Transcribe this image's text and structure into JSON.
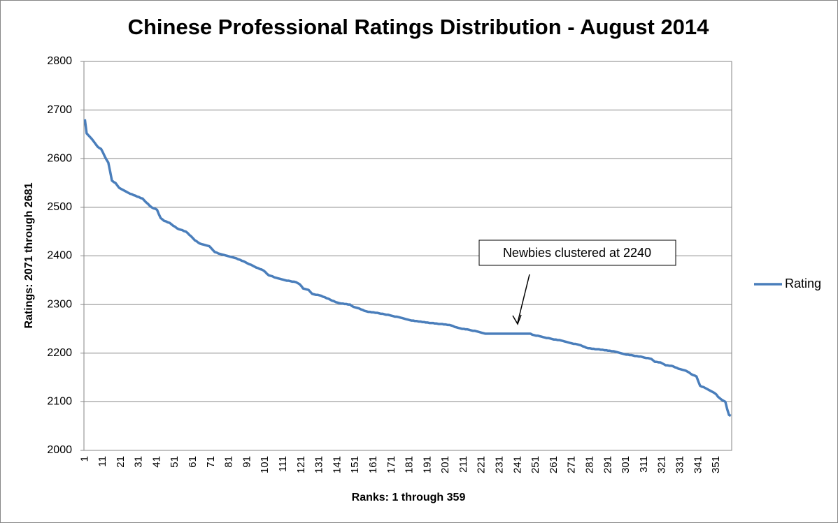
{
  "chart_data": {
    "type": "line",
    "title": "Chinese Professional Ratings Distribution - August 2014",
    "x_label": "Ranks: 1 through 359",
    "y_label": "Ratings: 2071 through 2681",
    "annotation": "Newbies clustered at 2240",
    "grid": true,
    "legend": "right",
    "ylim": [
      2000,
      2800
    ],
    "yticks": [
      2000,
      2100,
      2200,
      2300,
      2400,
      2500,
      2600,
      2700,
      2800
    ],
    "categories": [
      "1",
      null,
      null,
      null,
      null,
      null,
      null,
      null,
      null,
      null,
      "11",
      null,
      null,
      null,
      null,
      null,
      null,
      null,
      null,
      null,
      "21",
      null,
      null,
      null,
      null,
      null,
      null,
      null,
      null,
      null,
      "31",
      null,
      null,
      null,
      null,
      null,
      null,
      null,
      null,
      null,
      "41",
      null,
      null,
      null,
      null,
      null,
      null,
      null,
      null,
      null,
      "51",
      null,
      null,
      null,
      null,
      null,
      null,
      null,
      null,
      null,
      "61",
      null,
      null,
      null,
      null,
      null,
      null,
      null,
      null,
      null,
      "71",
      null,
      null,
      null,
      null,
      null,
      null,
      null,
      null,
      null,
      "81",
      null,
      null,
      null,
      null,
      null,
      null,
      null,
      null,
      null,
      "91",
      null,
      null,
      null,
      null,
      null,
      null,
      null,
      null,
      null,
      "101",
      null,
      null,
      null,
      null,
      null,
      null,
      null,
      null,
      null,
      "111",
      null,
      null,
      null,
      null,
      null,
      null,
      null,
      null,
      null,
      "121",
      null,
      null,
      null,
      null,
      null,
      null,
      null,
      null,
      null,
      "131",
      null,
      null,
      null,
      null,
      null,
      null,
      null,
      null,
      null,
      "141",
      null,
      null,
      null,
      null,
      null,
      null,
      null,
      null,
      null,
      "151",
      null,
      null,
      null,
      null,
      null,
      null,
      null,
      null,
      null,
      "161",
      null,
      null,
      null,
      null,
      null,
      null,
      null,
      null,
      null,
      "171",
      null,
      null,
      null,
      null,
      null,
      null,
      null,
      null,
      null,
      "181",
      null,
      null,
      null,
      null,
      null,
      null,
      null,
      null,
      null,
      "191",
      null,
      null,
      null,
      null,
      null,
      null,
      null,
      null,
      null,
      "201",
      null,
      null,
      null,
      null,
      null,
      null,
      null,
      null,
      null,
      "211",
      null,
      null,
      null,
      null,
      null,
      null,
      null,
      null,
      null,
      "221",
      null,
      null,
      null,
      null,
      null,
      null,
      null,
      null,
      null,
      "231",
      null,
      null,
      null,
      null,
      null,
      null,
      null,
      null,
      null,
      "241",
      null,
      null,
      null,
      null,
      null,
      null,
      null,
      null,
      null,
      "251",
      null,
      null,
      null,
      null,
      null,
      null,
      null,
      null,
      null,
      "261",
      null,
      null,
      null,
      null,
      null,
      null,
      null,
      null,
      null,
      "271",
      null,
      null,
      null,
      null,
      null,
      null,
      null,
      null,
      null,
      "281",
      null,
      null,
      null,
      null,
      null,
      null,
      null,
      null,
      null,
      "291",
      null,
      null,
      null,
      null,
      null,
      null,
      null,
      null,
      null,
      "301",
      null,
      null,
      null,
      null,
      null,
      null,
      null,
      null,
      null,
      "311",
      null,
      null,
      null,
      null,
      null,
      null,
      null,
      null,
      null,
      "321",
      null,
      null,
      null,
      null,
      null,
      null,
      null,
      null,
      null,
      "331",
      null,
      null,
      null,
      null,
      null,
      null,
      null,
      null,
      null,
      "341",
      null,
      null,
      null,
      null,
      null,
      null,
      null,
      null,
      null,
      "351",
      null,
      null,
      null,
      null,
      null,
      null,
      null,
      null
    ],
    "series": [
      {
        "name": "Rating",
        "color": "#4a7ebb",
        "values": [
          2681,
          2652,
          2648,
          2644,
          2640,
          2635,
          2630,
          2625,
          2622,
          2620,
          2613,
          2605,
          2598,
          2592,
          2574,
          2555,
          2552,
          2550,
          2545,
          2540,
          2538,
          2536,
          2534,
          2532,
          2530,
          2528,
          2527,
          2525,
          2524,
          2522,
          2521,
          2519,
          2518,
          2514,
          2510,
          2507,
          2503,
          2500,
          2498,
          2497,
          2495,
          2486,
          2478,
          2475,
          2472,
          2471,
          2469,
          2468,
          2465,
          2462,
          2460,
          2457,
          2455,
          2454,
          2453,
          2451,
          2450,
          2447,
          2443,
          2440,
          2436,
          2432,
          2430,
          2427,
          2425,
          2424,
          2423,
          2422,
          2421,
          2420,
          2416,
          2412,
          2408,
          2407,
          2405,
          2404,
          2403,
          2402,
          2401,
          2400,
          2399,
          2398,
          2397,
          2396,
          2395,
          2393,
          2392,
          2390,
          2389,
          2387,
          2385,
          2383,
          2382,
          2380,
          2378,
          2376,
          2375,
          2373,
          2372,
          2370,
          2367,
          2363,
          2360,
          2359,
          2358,
          2356,
          2355,
          2354,
          2353,
          2352,
          2351,
          2350,
          2349,
          2349,
          2348,
          2347,
          2347,
          2346,
          2344,
          2342,
          2338,
          2333,
          2332,
          2331,
          2330,
          2326,
          2322,
          2321,
          2320,
          2320,
          2319,
          2318,
          2316,
          2315,
          2313,
          2312,
          2310,
          2308,
          2307,
          2305,
          2304,
          2303,
          2302,
          2302,
          2301,
          2301,
          2300,
          2300,
          2297,
          2295,
          2294,
          2293,
          2292,
          2290,
          2289,
          2287,
          2286,
          2285,
          2285,
          2284,
          2284,
          2283,
          2283,
          2282,
          2281,
          2281,
          2280,
          2279,
          2279,
          2278,
          2277,
          2276,
          2275,
          2275,
          2274,
          2273,
          2272,
          2271,
          2270,
          2269,
          2268,
          2267,
          2267,
          2266,
          2266,
          2265,
          2265,
          2264,
          2264,
          2263,
          2263,
          2262,
          2262,
          2262,
          2261,
          2261,
          2260,
          2260,
          2260,
          2259,
          2259,
          2258,
          2258,
          2257,
          2256,
          2254,
          2253,
          2252,
          2251,
          2250,
          2250,
          2249,
          2249,
          2248,
          2247,
          2246,
          2246,
          2245,
          2244,
          2243,
          2242,
          2241,
          2240,
          2240,
          2240,
          2240,
          2240,
          2240,
          2240,
          2240,
          2240,
          2240,
          2240,
          2240,
          2240,
          2240,
          2240,
          2240,
          2240,
          2240,
          2240,
          2240,
          2240,
          2240,
          2240,
          2240,
          2240,
          2240,
          2238,
          2237,
          2236,
          2236,
          2235,
          2234,
          2233,
          2232,
          2231,
          2231,
          2230,
          2229,
          2228,
          2228,
          2227,
          2227,
          2226,
          2225,
          2224,
          2223,
          2222,
          2221,
          2220,
          2219,
          2219,
          2218,
          2217,
          2216,
          2214,
          2213,
          2211,
          2210,
          2210,
          2209,
          2209,
          2208,
          2208,
          2208,
          2207,
          2207,
          2206,
          2206,
          2205,
          2205,
          2204,
          2204,
          2203,
          2202,
          2201,
          2200,
          2199,
          2198,
          2197,
          2197,
          2196,
          2196,
          2195,
          2194,
          2194,
          2193,
          2193,
          2192,
          2191,
          2190,
          2190,
          2189,
          2188,
          2185,
          2182,
          2182,
          2181,
          2181,
          2179,
          2177,
          2175,
          2175,
          2174,
          2174,
          2173,
          2171,
          2170,
          2168,
          2167,
          2166,
          2165,
          2164,
          2162,
          2160,
          2157,
          2155,
          2154,
          2152,
          2142,
          2133,
          2131,
          2130,
          2128,
          2126,
          2124,
          2122,
          2120,
          2118,
          2115,
          2110,
          2107,
          2104,
          2102,
          2100,
          2085,
          2073,
          2071
        ]
      }
    ]
  }
}
